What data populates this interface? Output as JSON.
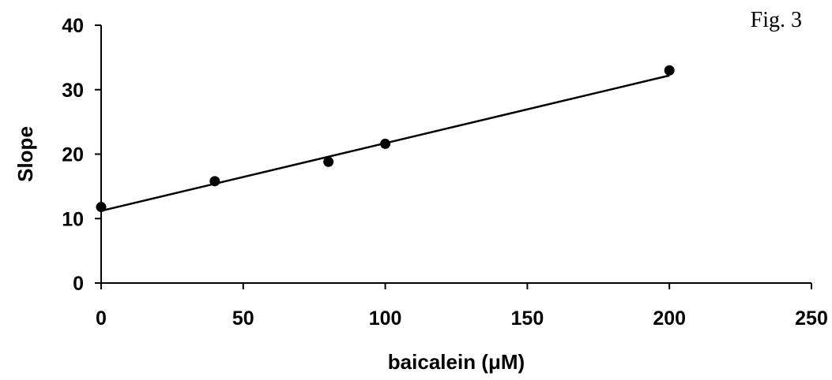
{
  "figure_label": "Fig. 3",
  "chart_data": {
    "type": "scatter",
    "title": "",
    "xlabel": "baicalein (μM)",
    "ylabel": "Slope",
    "xlim": [
      0,
      250
    ],
    "ylim": [
      0,
      40
    ],
    "x_ticks": [
      0,
      50,
      100,
      150,
      200,
      250
    ],
    "y_ticks": [
      0,
      10,
      20,
      30,
      40
    ],
    "grid": false,
    "legend": "none",
    "series": [
      {
        "x": [
          0,
          40,
          80,
          100,
          200
        ],
        "y": [
          11.8,
          15.8,
          18.8,
          21.6,
          33.0
        ]
      }
    ],
    "trendline": {
      "type": "linear",
      "x": [
        0,
        200
      ],
      "y": [
        11.2,
        32.2
      ]
    },
    "colors": {
      "points": "#000000",
      "line": "#000000",
      "axes": "#000000"
    }
  }
}
